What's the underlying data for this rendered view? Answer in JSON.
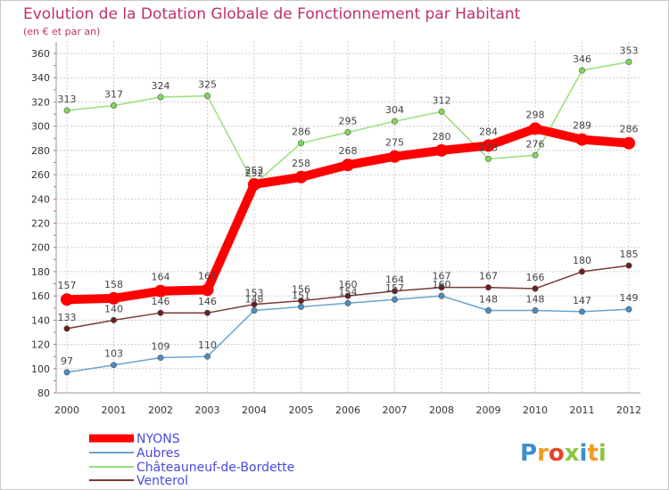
{
  "chart_data": {
    "type": "line",
    "title": "Evolution de la Dotation Globale de Fonctionnement par Habitant",
    "subtitle": "(en € et par an)",
    "xlabel": "",
    "ylabel": "",
    "ylim": [
      80,
      360
    ],
    "yticks": [
      "80",
      "100",
      "120",
      "140",
      "160",
      "180",
      "200",
      "220",
      "240",
      "260",
      "280",
      "300",
      "320",
      "340",
      "360"
    ],
    "categories": [
      "2000",
      "2001",
      "2002",
      "2003",
      "2004",
      "2005",
      "2006",
      "2007",
      "2008",
      "2009",
      "2010",
      "2011",
      "2012"
    ],
    "grid": true,
    "legend_position": "bottom-left",
    "series": [
      {
        "name": "NYONS",
        "color": "#ff0000",
        "marker_color": "#ff0000",
        "values": [
          157,
          158,
          164,
          165,
          252,
          258,
          268,
          275,
          280,
          284,
          298,
          289,
          286
        ]
      },
      {
        "name": "Aubres",
        "color": "#6aa4cf",
        "marker_color": "#4a8dc4",
        "values": [
          97,
          103,
          109,
          110,
          148,
          151,
          154,
          157,
          160,
          148,
          148,
          147,
          149
        ]
      },
      {
        "name": "Châteauneuf-de-Bordette",
        "color": "#98df7a",
        "marker_color": "#7ed957",
        "values": [
          313,
          317,
          324,
          325,
          252,
          286,
          295,
          304,
          312,
          273,
          276,
          346,
          353
        ]
      },
      {
        "name": "Venterol",
        "color": "#7a3a3a",
        "marker_color": "#6b1f1f",
        "values": [
          133,
          140,
          146,
          146,
          153,
          156,
          160,
          164,
          167,
          167,
          166,
          180,
          185
        ]
      }
    ]
  },
  "logo": {
    "text": "Proxiti"
  },
  "colors": {
    "title": "#c0306b",
    "legend_text": "#4a4ae0",
    "grid": "#cccccc"
  }
}
